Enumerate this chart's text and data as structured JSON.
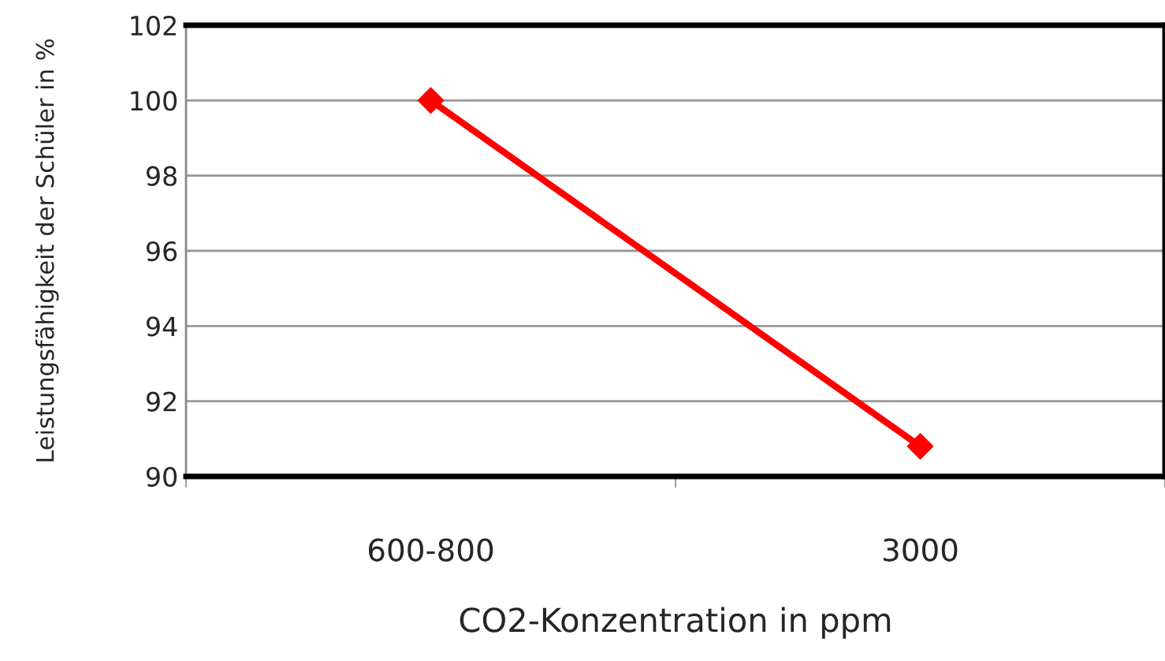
{
  "chart_data": {
    "type": "line",
    "xlabel": "CO2-Konzentration in ppm",
    "ylabel": "Leistungsfähigkeit der Schüler in %",
    "categories": [
      "600-800",
      "3000"
    ],
    "series": [
      {
        "color": "#ff0000",
        "values": [
          100,
          90.8
        ]
      }
    ],
    "ylim": [
      90,
      102
    ],
    "yticks": [
      90,
      92,
      94,
      96,
      98,
      100,
      102
    ],
    "grid": "y",
    "marker": "diamond",
    "line_style": "solid",
    "legend": false
  }
}
